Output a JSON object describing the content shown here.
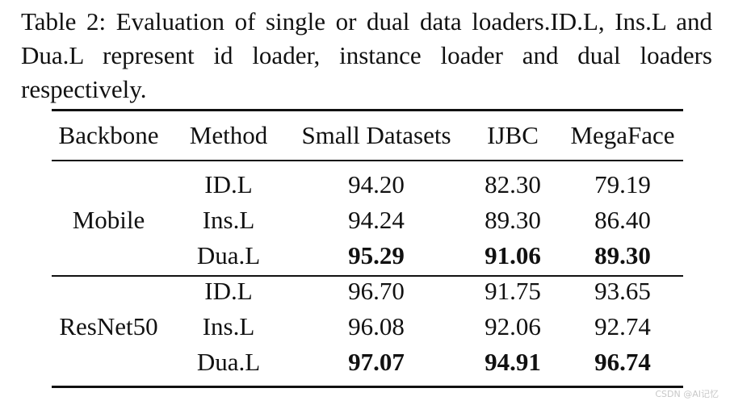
{
  "caption": "Table 2: Evaluation of single or dual data loaders.ID.L, Ins.L and Dua.L represent id loader, instance loader and dual loaders respectively.",
  "table": {
    "headers": [
      "Backbone",
      "Method",
      "Small Datasets",
      "IJBC",
      "MegaFace"
    ],
    "groups": [
      {
        "backbone": "Mobile",
        "rows": [
          {
            "method": "ID.L",
            "small": "94.20",
            "ijbc": "82.30",
            "mega": "79.19"
          },
          {
            "method": "Ins.L",
            "small": "94.24",
            "ijbc": "89.30",
            "mega": "86.40"
          },
          {
            "method": "Dua.L",
            "small": "95.29",
            "ijbc": "91.06",
            "mega": "89.30"
          }
        ]
      },
      {
        "backbone": "ResNet50",
        "rows": [
          {
            "method": "ID.L",
            "small": "96.70",
            "ijbc": "91.75",
            "mega": "93.65"
          },
          {
            "method": "Ins.L",
            "small": "96.08",
            "ijbc": "92.06",
            "mega": "92.74"
          },
          {
            "method": "Dua.L",
            "small": "97.07",
            "ijbc": "94.91",
            "mega": "96.74"
          }
        ]
      }
    ]
  },
  "watermark": "CSDN @AI记忆"
}
